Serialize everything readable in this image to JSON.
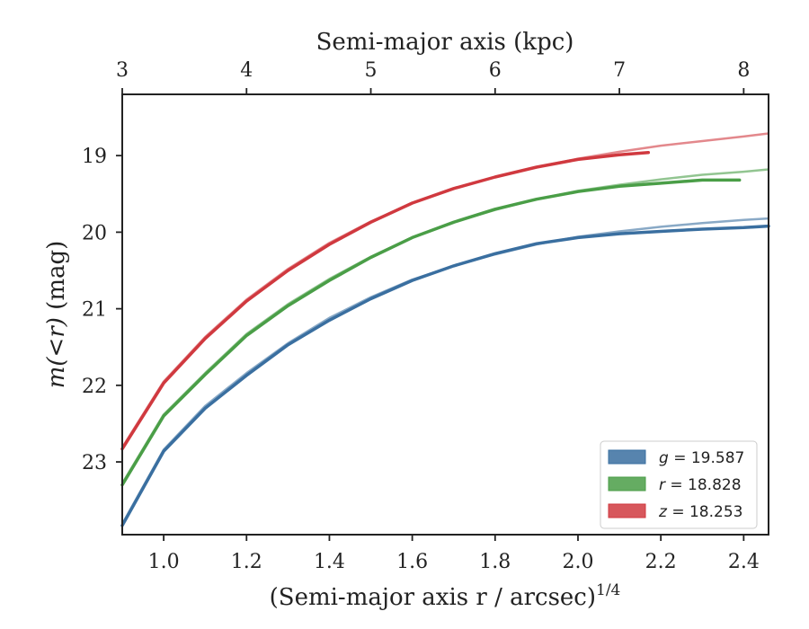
{
  "chart_data": {
    "type": "line",
    "xlabel": "(Semi-major axis r / arcsec)",
    "xlabel_sup": "1/4",
    "top_xlabel": "Semi-major axis (kpc)",
    "ylabel_pre": "m(<r)",
    "ylabel_post": " (mag)",
    "xlim": [
      0.9,
      2.46
    ],
    "ylim": [
      23.95,
      18.2
    ],
    "y_inverted": true,
    "x_ticks": [
      1.0,
      1.2,
      1.4,
      1.6,
      1.8,
      2.0,
      2.2,
      2.4
    ],
    "x_tick_labels": [
      "1.0",
      "1.2",
      "1.4",
      "1.6",
      "1.8",
      "2.0",
      "2.2",
      "2.4"
    ],
    "y_ticks": [
      19,
      20,
      21,
      22,
      23
    ],
    "y_tick_labels": [
      "19",
      "20",
      "21",
      "22",
      "23"
    ],
    "top_ticks_kpc": [
      3,
      4,
      5,
      6,
      7,
      8
    ],
    "top_tick_labels": [
      "3",
      "4",
      "5",
      "6",
      "7",
      "8"
    ],
    "top_tick_positions_x": [
      0.9,
      1.2,
      1.5,
      1.8,
      2.1,
      2.4
    ],
    "grid": false,
    "legend_position": "lower-right",
    "series": [
      {
        "name": "g = 19.587",
        "band": "g",
        "mag": "19.587",
        "color": "#3a6fa0",
        "data_x": [
          0.9,
          1.0,
          1.1,
          1.2,
          1.3,
          1.4,
          1.5,
          1.6,
          1.7,
          1.8,
          1.9,
          2.0,
          2.1,
          2.2,
          2.3,
          2.4,
          2.46
        ],
        "data_y": [
          23.83,
          22.86,
          22.3,
          21.87,
          21.47,
          21.15,
          20.87,
          20.63,
          20.44,
          20.28,
          20.15,
          20.07,
          20.02,
          19.99,
          19.96,
          19.94,
          19.92
        ],
        "model_x": [
          0.9,
          1.0,
          1.1,
          1.2,
          1.3,
          1.4,
          1.5,
          1.6,
          1.7,
          1.8,
          1.9,
          2.0,
          2.1,
          2.2,
          2.3,
          2.4,
          2.46
        ],
        "model_y": [
          23.81,
          22.84,
          22.27,
          21.84,
          21.45,
          21.12,
          20.85,
          20.62,
          20.44,
          20.29,
          20.16,
          20.06,
          19.99,
          19.93,
          19.88,
          19.84,
          19.82
        ]
      },
      {
        "name": "r = 18.828",
        "band": "r",
        "mag": "18.828",
        "color": "#4a9e47",
        "data_x": [
          0.9,
          1.0,
          1.1,
          1.2,
          1.3,
          1.4,
          1.5,
          1.6,
          1.7,
          1.8,
          1.9,
          2.0,
          2.1,
          2.2,
          2.3,
          2.39
        ],
        "data_y": [
          23.3,
          22.4,
          21.86,
          21.35,
          20.96,
          20.63,
          20.33,
          20.07,
          19.87,
          19.7,
          19.57,
          19.47,
          19.4,
          19.36,
          19.32,
          19.32
        ],
        "model_x": [
          0.9,
          1.0,
          1.1,
          1.2,
          1.3,
          1.4,
          1.5,
          1.6,
          1.7,
          1.8,
          1.9,
          2.0,
          2.1,
          2.2,
          2.3,
          2.4,
          2.46
        ],
        "model_y": [
          23.28,
          22.38,
          21.84,
          21.33,
          20.94,
          20.61,
          20.32,
          20.07,
          19.87,
          19.71,
          19.57,
          19.46,
          19.38,
          19.31,
          19.25,
          19.21,
          19.18
        ]
      },
      {
        "name": "z = 18.253",
        "band": "z",
        "mag": "18.253",
        "color": "#d0393f",
        "data_x": [
          0.9,
          1.0,
          1.1,
          1.2,
          1.3,
          1.4,
          1.5,
          1.6,
          1.7,
          1.8,
          1.9,
          2.0,
          2.1,
          2.17
        ],
        "data_y": [
          22.83,
          21.97,
          21.39,
          20.9,
          20.5,
          20.16,
          19.87,
          19.62,
          19.43,
          19.28,
          19.15,
          19.05,
          18.99,
          18.96
        ],
        "model_x": [
          0.9,
          1.0,
          1.1,
          1.2,
          1.3,
          1.4,
          1.5,
          1.6,
          1.7,
          1.8,
          1.9,
          2.0,
          2.1,
          2.2,
          2.3,
          2.4,
          2.46
        ],
        "model_y": [
          22.81,
          21.95,
          21.37,
          20.88,
          20.48,
          20.14,
          19.86,
          19.62,
          19.43,
          19.28,
          19.15,
          19.04,
          18.95,
          18.87,
          18.81,
          18.75,
          18.71
        ]
      }
    ]
  }
}
